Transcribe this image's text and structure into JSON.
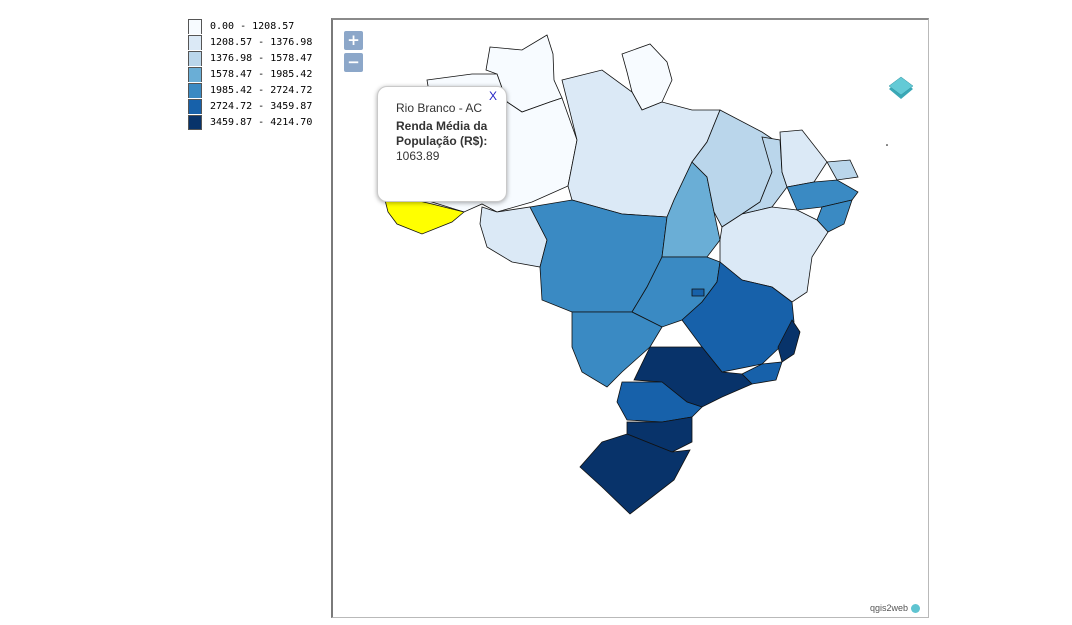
{
  "legend": {
    "classes": [
      {
        "label": "0.00 - 1208.57",
        "color": "#f7fbff"
      },
      {
        "label": "1208.57 - 1376.98",
        "color": "#dbe9f6"
      },
      {
        "label": "1376.98 - 1578.47",
        "color": "#bad6eb"
      },
      {
        "label": "1578.47 - 1985.42",
        "color": "#6aaed6"
      },
      {
        "label": "1985.42 - 2724.72",
        "color": "#3a8ac3"
      },
      {
        "label": "2724.72 - 3459.87",
        "color": "#1761aa"
      },
      {
        "label": "3459.87 - 4214.70",
        "color": "#08336a"
      }
    ]
  },
  "map": {
    "highlight_color": "#ffff00",
    "zoom_in": "+",
    "zoom_out": "−",
    "layers_icon": "layers-icon",
    "attribution": "qgis2web"
  },
  "popup": {
    "close": "X",
    "title": "Rio Branco - AC",
    "label": "Renda Média da População (R$):",
    "value": "1063.89"
  }
}
